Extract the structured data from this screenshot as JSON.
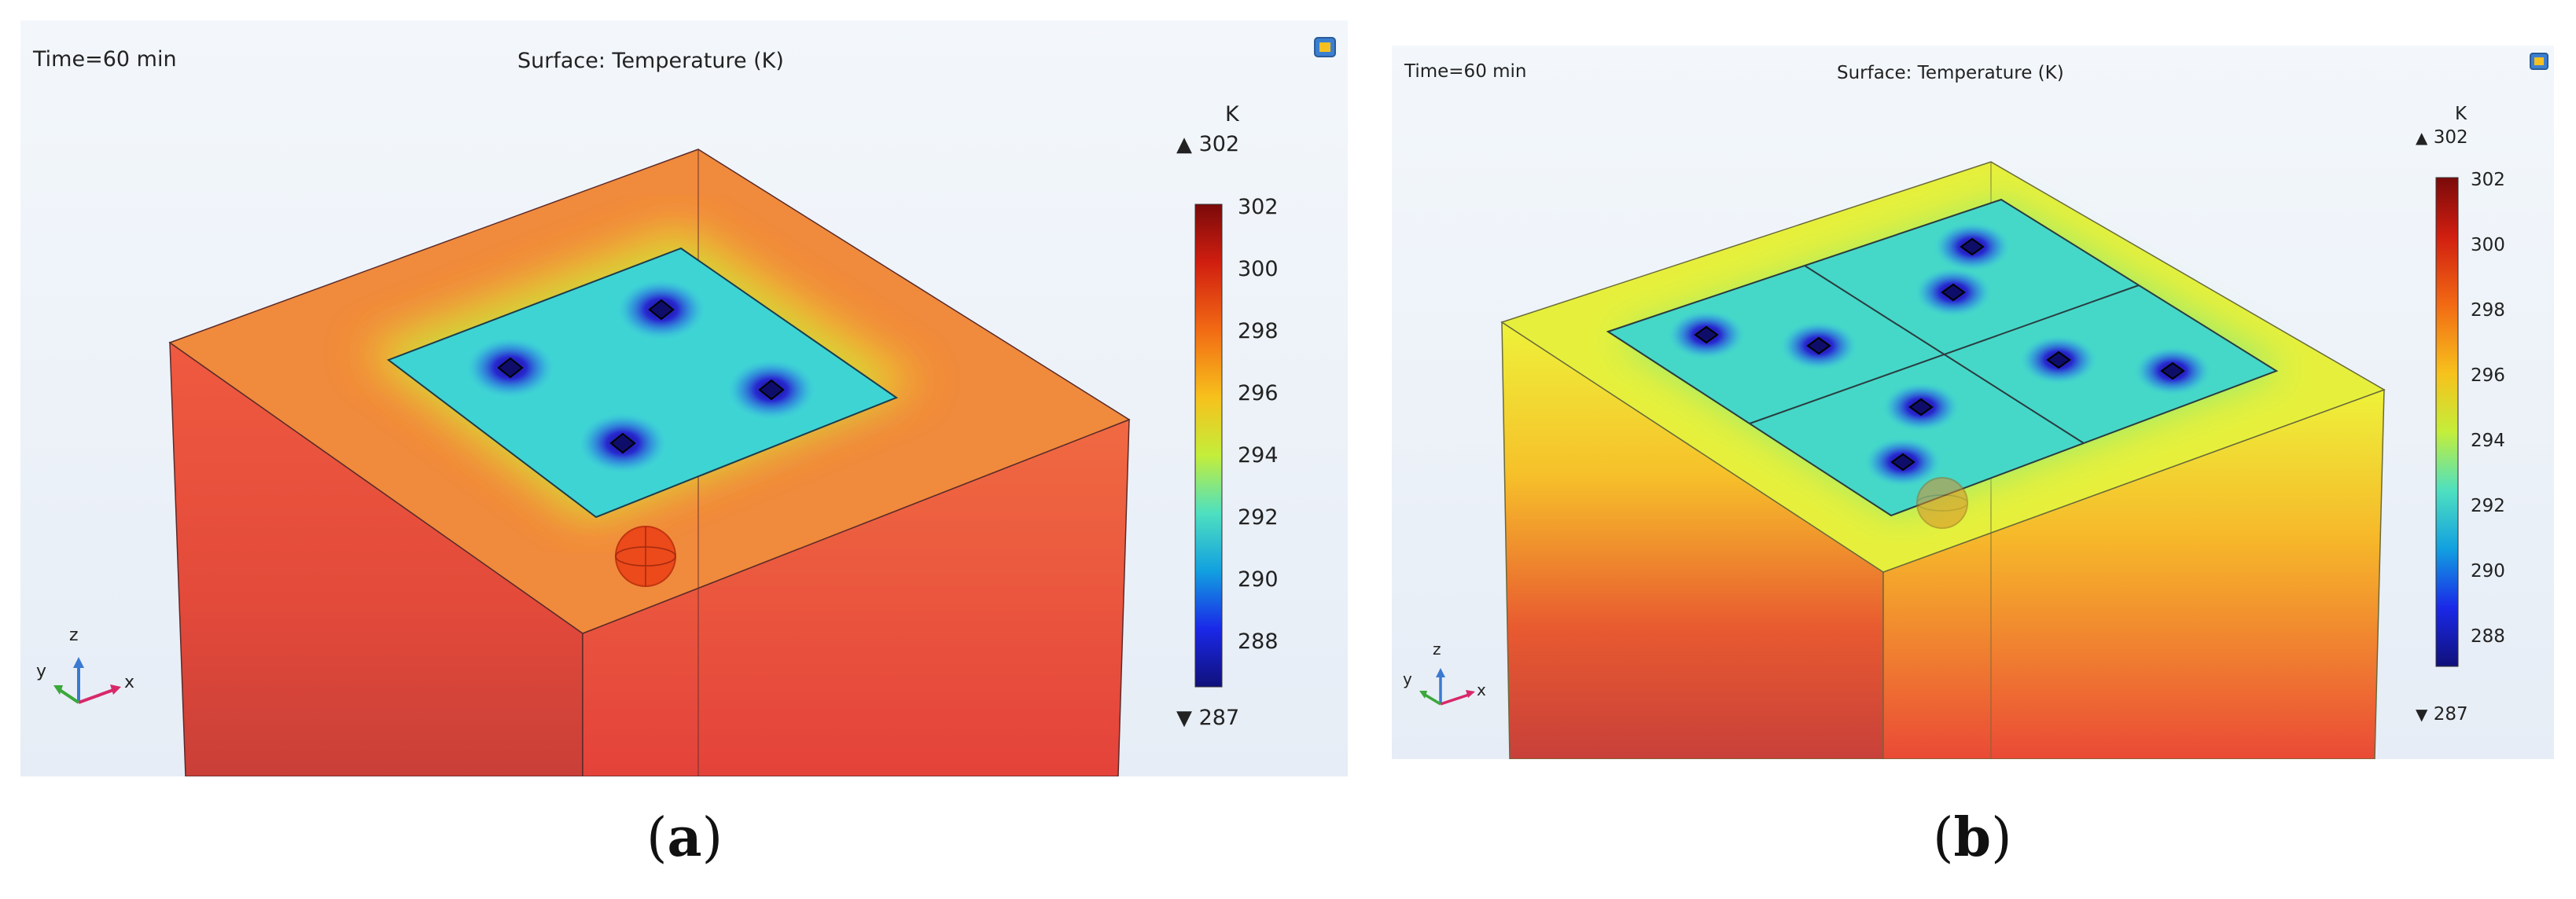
{
  "panel_a": {
    "time_label": "Time=60 min",
    "title": "Surface: Temperature (K)",
    "unit": "K",
    "max_label": "302",
    "min_label": "287",
    "ticks": [
      "302",
      "300",
      "298",
      "296",
      "294",
      "292",
      "290",
      "288"
    ],
    "axes": {
      "x": "x",
      "y": "y",
      "z": "z"
    },
    "caption_letter": "a"
  },
  "panel_b": {
    "time_label": "Time=60 min",
    "title": "Surface: Temperature (K)",
    "unit": "K",
    "max_label": "302",
    "min_label": "287",
    "ticks": [
      "302",
      "300",
      "298",
      "296",
      "294",
      "292",
      "290",
      "288"
    ],
    "axes": {
      "x": "x",
      "y": "y",
      "z": "z"
    },
    "caption_letter": "b"
  },
  "colors": {
    "background_top": "#f2f6fb",
    "background_bottom": "#e3ebf5",
    "hot": "#e8463a",
    "warm": "#f7a23a",
    "cool_plate": "#3fd6d6",
    "cold_spot": "#1a1ab4",
    "colorbar": [
      "#7a0a0a",
      "#d01e10",
      "#f26a14",
      "#f7c11c",
      "#c4ee3a",
      "#4ee0c0",
      "#12a0e0",
      "#1a28e8",
      "#10107a"
    ]
  },
  "icons": {
    "max_marker": "triangle-up-icon",
    "min_marker": "triangle-down-icon",
    "view_button": "image-icon",
    "axis_triad": "axis-triad-icon"
  }
}
